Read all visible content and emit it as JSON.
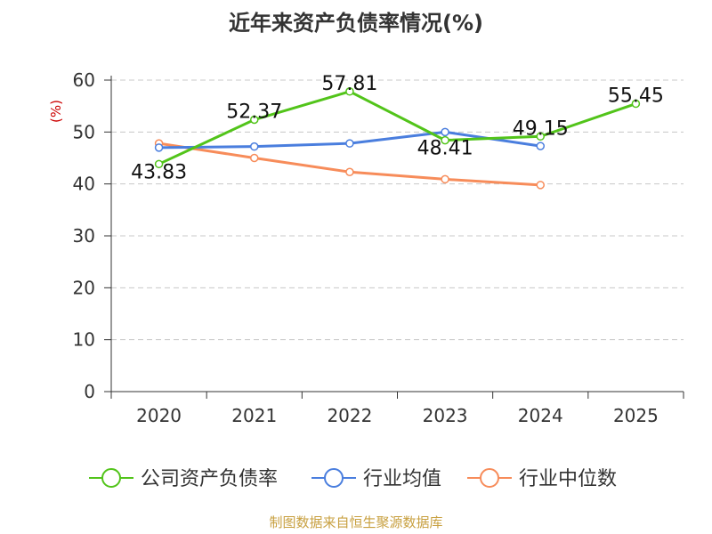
{
  "chart_data": {
    "type": "line",
    "title": "近年来资产负债率情况(%)",
    "ylabel": "(%)",
    "ylim": [
      0,
      60
    ],
    "yticks": [
      "0",
      "10",
      "20",
      "30",
      "40",
      "50",
      "60"
    ],
    "categories": [
      "2020",
      "2021",
      "2022",
      "2023",
      "2024",
      "2025"
    ],
    "grid": true,
    "legend_position": "bottom",
    "series": [
      {
        "name": "公司资产负债率",
        "color": "#52c41a",
        "values": [
          43.83,
          52.37,
          57.81,
          48.41,
          49.15,
          55.45
        ],
        "labels": [
          "43.83",
          "52.37",
          "57.81",
          "48.41",
          "49.15",
          "55.45"
        ]
      },
      {
        "name": "行业均值",
        "color": "#4a7ede",
        "values": [
          47.0,
          47.2,
          47.8,
          50.0,
          47.3,
          null
        ]
      },
      {
        "name": "行业中位数",
        "color": "#f78c5a",
        "values": [
          47.8,
          45.0,
          42.3,
          40.9,
          39.8,
          null
        ]
      }
    ]
  },
  "footer": {
    "source": "制图数据来自恒生聚源数据库",
    "source_color": "#c8a040"
  },
  "ylabel_color": "#cc0000"
}
